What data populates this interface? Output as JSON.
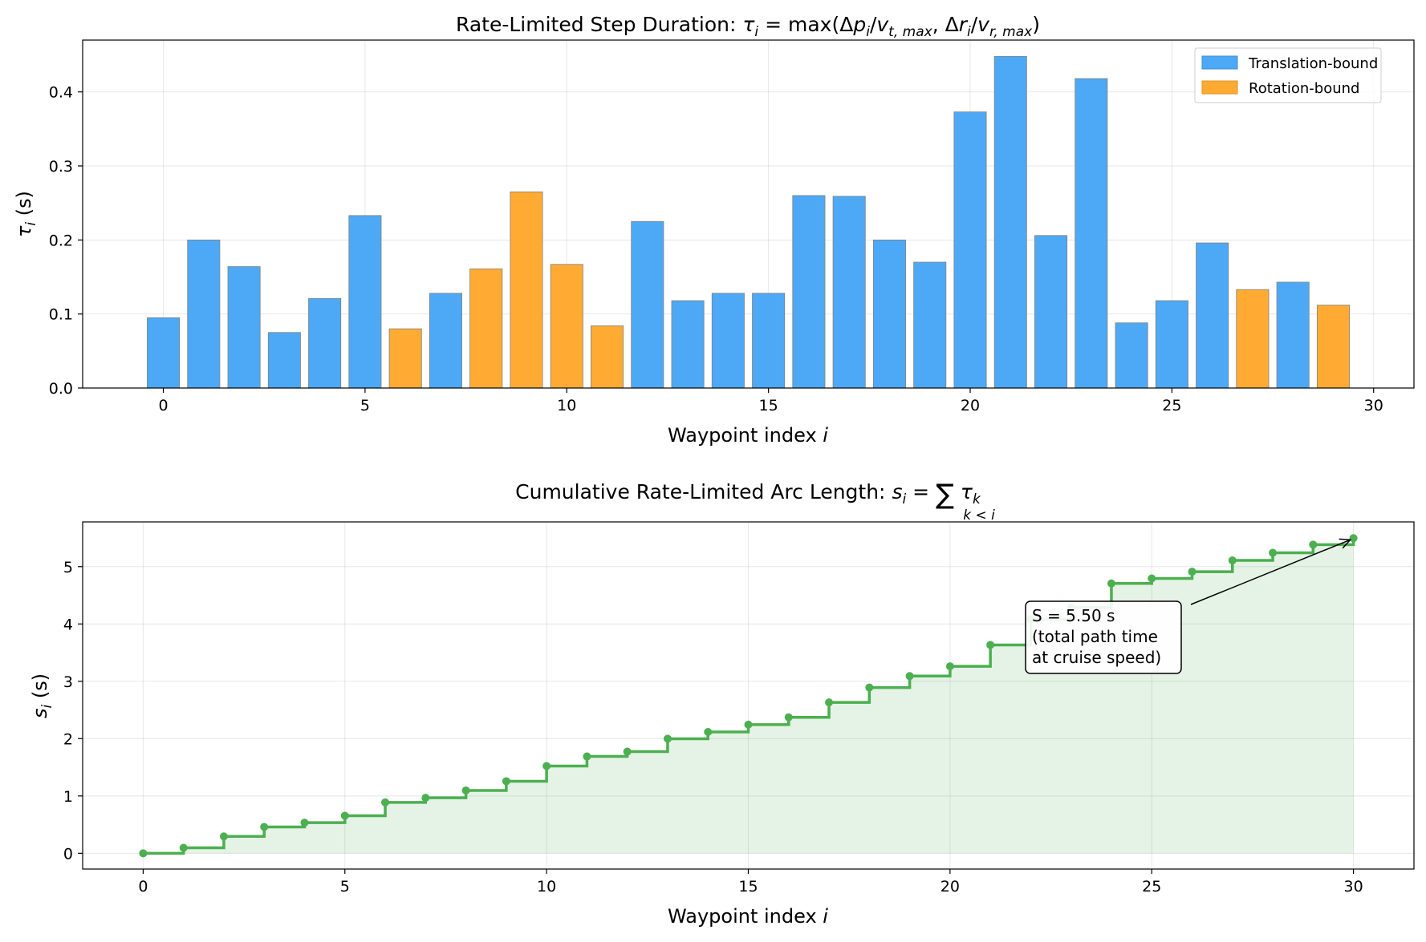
{
  "chart_data": [
    {
      "type": "bar",
      "title": "Rate-Limited Step Duration: τ_i = max(Δp_i/v_t,max, Δr_i/v_r,max)",
      "xlabel": "Waypoint index i",
      "ylabel": "τ_i (s)",
      "xlim": [
        -2,
        31
      ],
      "ylim": [
        0,
        0.47
      ],
      "xticks": [
        0,
        5,
        10,
        15,
        20,
        25,
        30
      ],
      "yticks": [
        0.0,
        0.1,
        0.2,
        0.3,
        0.4
      ],
      "ytick_labels": [
        "0.0",
        "0.1",
        "0.2",
        "0.3",
        "0.4"
      ],
      "grid": true,
      "legend_position": "top-right",
      "colors": {
        "translation": "#4DA9F5",
        "rotation": "#FFAB33",
        "edge": "#808080"
      },
      "legend": [
        {
          "label": "Translation-bound",
          "key": "translation"
        },
        {
          "label": "Rotation-bound",
          "key": "rotation"
        }
      ],
      "x": [
        0,
        1,
        2,
        3,
        4,
        5,
        6,
        7,
        8,
        9,
        10,
        11,
        12,
        13,
        14,
        15,
        16,
        17,
        18,
        19,
        20,
        21,
        22,
        23,
        24,
        25,
        26,
        27,
        28,
        29
      ],
      "values": [
        0.095,
        0.2,
        0.164,
        0.075,
        0.121,
        0.233,
        0.08,
        0.128,
        0.161,
        0.265,
        0.167,
        0.084,
        0.225,
        0.118,
        0.128,
        0.128,
        0.26,
        0.259,
        0.2,
        0.17,
        0.373,
        0.448,
        0.206,
        0.418,
        0.088,
        0.118,
        0.196,
        0.133,
        0.143,
        0.112
      ],
      "bound": [
        "translation",
        "translation",
        "translation",
        "translation",
        "translation",
        "translation",
        "rotation",
        "translation",
        "rotation",
        "rotation",
        "rotation",
        "rotation",
        "translation",
        "translation",
        "translation",
        "translation",
        "translation",
        "translation",
        "translation",
        "translation",
        "translation",
        "translation",
        "translation",
        "translation",
        "translation",
        "translation",
        "translation",
        "rotation",
        "translation",
        "rotation"
      ]
    },
    {
      "type": "line",
      "title": "Cumulative Rate-Limited Arc Length: s_i = Σ_{k<i} τ_k",
      "xlabel": "Waypoint index i",
      "ylabel": "s_i (s)",
      "xlim": [
        -1.5,
        31.5
      ],
      "ylim": [
        -0.275,
        5.78
      ],
      "xticks": [
        0,
        5,
        10,
        15,
        20,
        25,
        30
      ],
      "yticks": [
        0,
        1,
        2,
        3,
        4,
        5
      ],
      "grid": true,
      "colors": {
        "line": "#4CAF50",
        "fill": "#4CAF50"
      },
      "x": [
        0,
        1,
        2,
        3,
        4,
        5,
        6,
        7,
        8,
        9,
        10,
        11,
        12,
        13,
        14,
        15,
        16,
        17,
        18,
        19,
        20,
        21,
        22,
        23,
        24,
        25,
        26,
        27,
        28,
        29,
        30
      ],
      "values": [
        0,
        0.095,
        0.295,
        0.459,
        0.534,
        0.655,
        0.888,
        0.968,
        1.096,
        1.257,
        1.522,
        1.689,
        1.773,
        1.998,
        2.116,
        2.244,
        2.372,
        2.632,
        2.891,
        3.091,
        3.261,
        3.634,
        4.082,
        4.288,
        4.706,
        4.794,
        4.912,
        5.108,
        5.241,
        5.384,
        5.496
      ],
      "annotation": {
        "lines": [
          "S = 5.50 s",
          "(total path time",
          "at cruise speed)"
        ],
        "target_x": 30,
        "target_y": 5.496
      }
    }
  ]
}
